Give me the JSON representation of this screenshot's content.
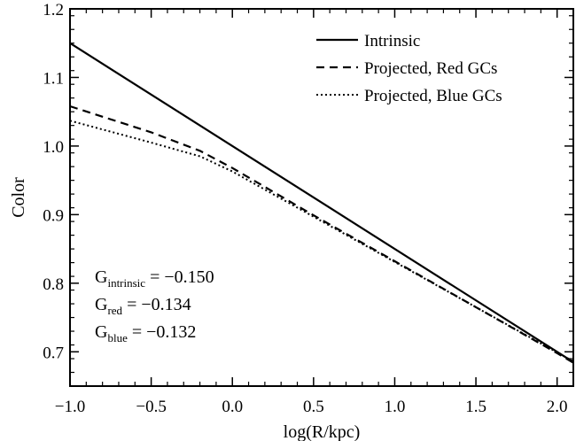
{
  "chart_data": {
    "type": "line",
    "xlabel": "log(R/kpc)",
    "ylabel": "Color",
    "xlim": [
      -1.0,
      2.1
    ],
    "ylim": [
      0.65,
      1.2
    ],
    "x_ticks": [
      "-1.0",
      "-0.5",
      "0.0",
      "0.5",
      "1.0",
      "1.5",
      "2.0"
    ],
    "y_ticks": [
      "0.7",
      "0.8",
      "0.9",
      "1.0",
      "1.1",
      "1.2"
    ],
    "grid": false,
    "legend_position": "top-right",
    "series": [
      {
        "name": "Intrinsic",
        "style": "solid",
        "x": [
          -1.0,
          2.1
        ],
        "y": [
          1.15,
          0.685
        ]
      },
      {
        "name": "Projected, Red GCs",
        "style": "dashed",
        "x": [
          -1.0,
          -0.5,
          -0.2,
          0.0,
          0.5,
          1.0,
          1.5,
          2.0,
          2.1
        ],
        "y": [
          1.058,
          1.02,
          0.993,
          0.968,
          0.899,
          0.832,
          0.765,
          0.698,
          0.684
        ]
      },
      {
        "name": "Projected, Blue GCs",
        "style": "dotted",
        "x": [
          -1.0,
          -0.5,
          -0.2,
          0.0,
          0.5,
          1.0,
          1.5,
          2.0,
          2.1
        ],
        "y": [
          1.037,
          1.005,
          0.985,
          0.963,
          0.897,
          0.831,
          0.765,
          0.699,
          0.686
        ]
      }
    ],
    "annotations": [
      {
        "base": "G",
        "sub": "intrinsic",
        "text": " = −0.150"
      },
      {
        "base": "G",
        "sub": "red",
        "text": "  = −0.134"
      },
      {
        "base": "G",
        "sub": "blue",
        "text": " = −0.132"
      }
    ]
  }
}
